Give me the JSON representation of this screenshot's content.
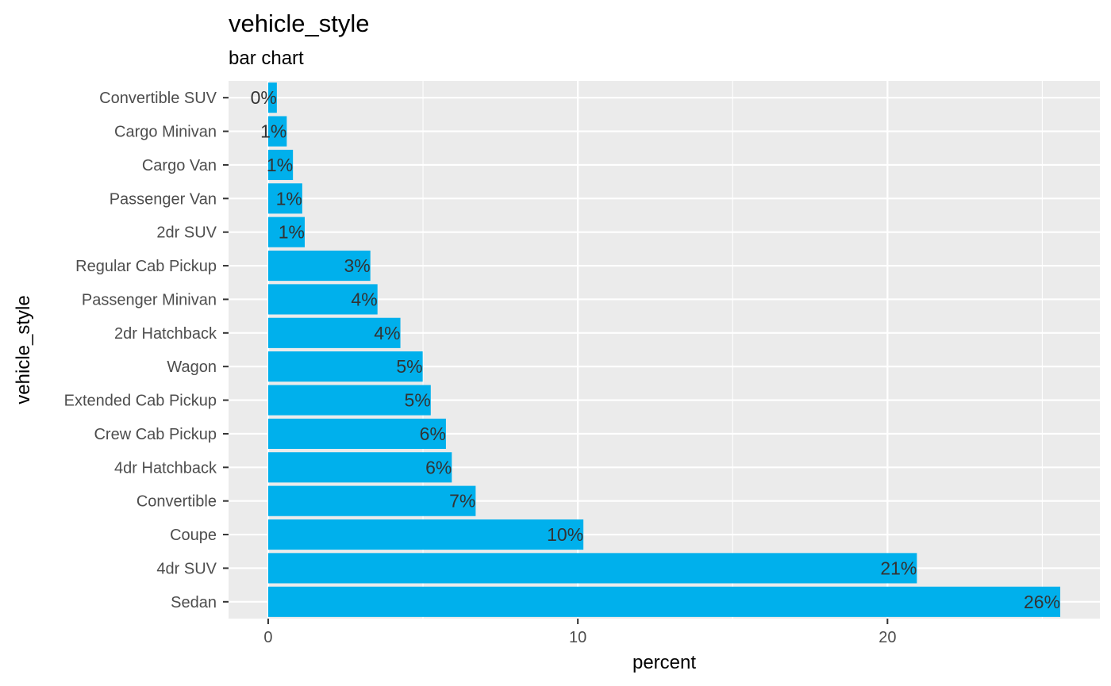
{
  "chart_data": {
    "type": "bar",
    "orientation": "horizontal",
    "title": "vehicle_style",
    "subtitle": "bar chart",
    "xlabel": "percent",
    "ylabel": "vehicle_style",
    "categories": [
      "Convertible SUV",
      "Cargo Minivan",
      "Cargo Van",
      "Passenger Van",
      "2dr SUV",
      "Regular Cab Pickup",
      "Passenger Minivan",
      "2dr Hatchback",
      "Wagon",
      "Extended Cab Pickup",
      "Crew Cab Pickup",
      "4dr Hatchback",
      "Convertible",
      "Coupe",
      "4dr SUV",
      "Sedan"
    ],
    "values": [
      0.28,
      0.6,
      0.8,
      1.1,
      1.18,
      3.3,
      3.53,
      4.27,
      4.99,
      5.25,
      5.74,
      5.93,
      6.7,
      10.18,
      20.95,
      25.58
    ],
    "data_labels": [
      "0%",
      "1%",
      "1%",
      "1%",
      "1%",
      "3%",
      "4%",
      "4%",
      "5%",
      "5%",
      "6%",
      "6%",
      "7%",
      "10%",
      "21%",
      "26%"
    ],
    "xlim": [
      -1.28,
      26.86
    ],
    "x_ticks": [
      0,
      10,
      20
    ],
    "x_tick_labels": [
      "0",
      "10",
      "20"
    ],
    "grid": true,
    "bar_color": "#00B0EC",
    "panel_color": "#EBEBEB",
    "grid_color": "#FFFFFF"
  }
}
